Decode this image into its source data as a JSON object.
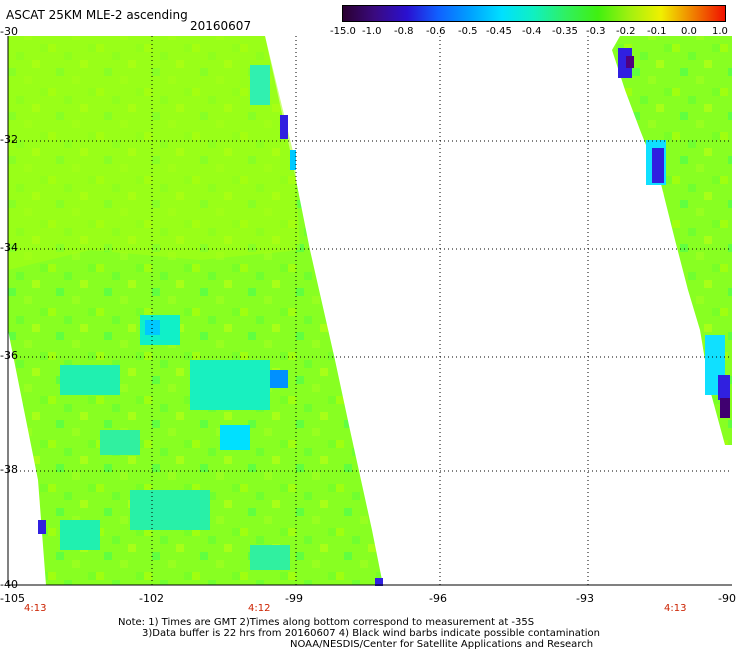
{
  "header": {
    "title": "ASCAT 25KM MLE-2 ascending",
    "date": "20160607"
  },
  "colorbar": {
    "labels": [
      "-15.0",
      "-1.0",
      "-0.8",
      "-0.6",
      "-0.5",
      "-0.45",
      "-0.4",
      "-0.35",
      "-0.3",
      "-0.2",
      "-0.1",
      "0.0",
      "1.0"
    ],
    "colors": [
      "#2a0030",
      "#3a0a80",
      "#2a10d0",
      "#1060ff",
      "#00a0ff",
      "#00e0ff",
      "#10f0c0",
      "#30f060",
      "#40f010",
      "#a0f010",
      "#f0f000",
      "#f08000",
      "#f01000"
    ]
  },
  "axes": {
    "y_ticks": [
      "-30",
      "-32",
      "-34",
      "-36",
      "-38",
      "-40"
    ],
    "x_ticks": [
      "-105",
      "-102",
      "-99",
      "-96",
      "-93",
      "-90"
    ],
    "times": [
      "4:13",
      "4:12",
      "4:13"
    ]
  },
  "notes": {
    "line1": "Note: 1) Times are GMT 2)Times along bottom correspond to measurement at -35S",
    "line2": "3)Data buffer is 22 hrs from 20160607 4) Black wind barbs indicate possible contamination",
    "line3": "NOAA/NESDIS/Center for Satellite Applications and Research"
  }
}
